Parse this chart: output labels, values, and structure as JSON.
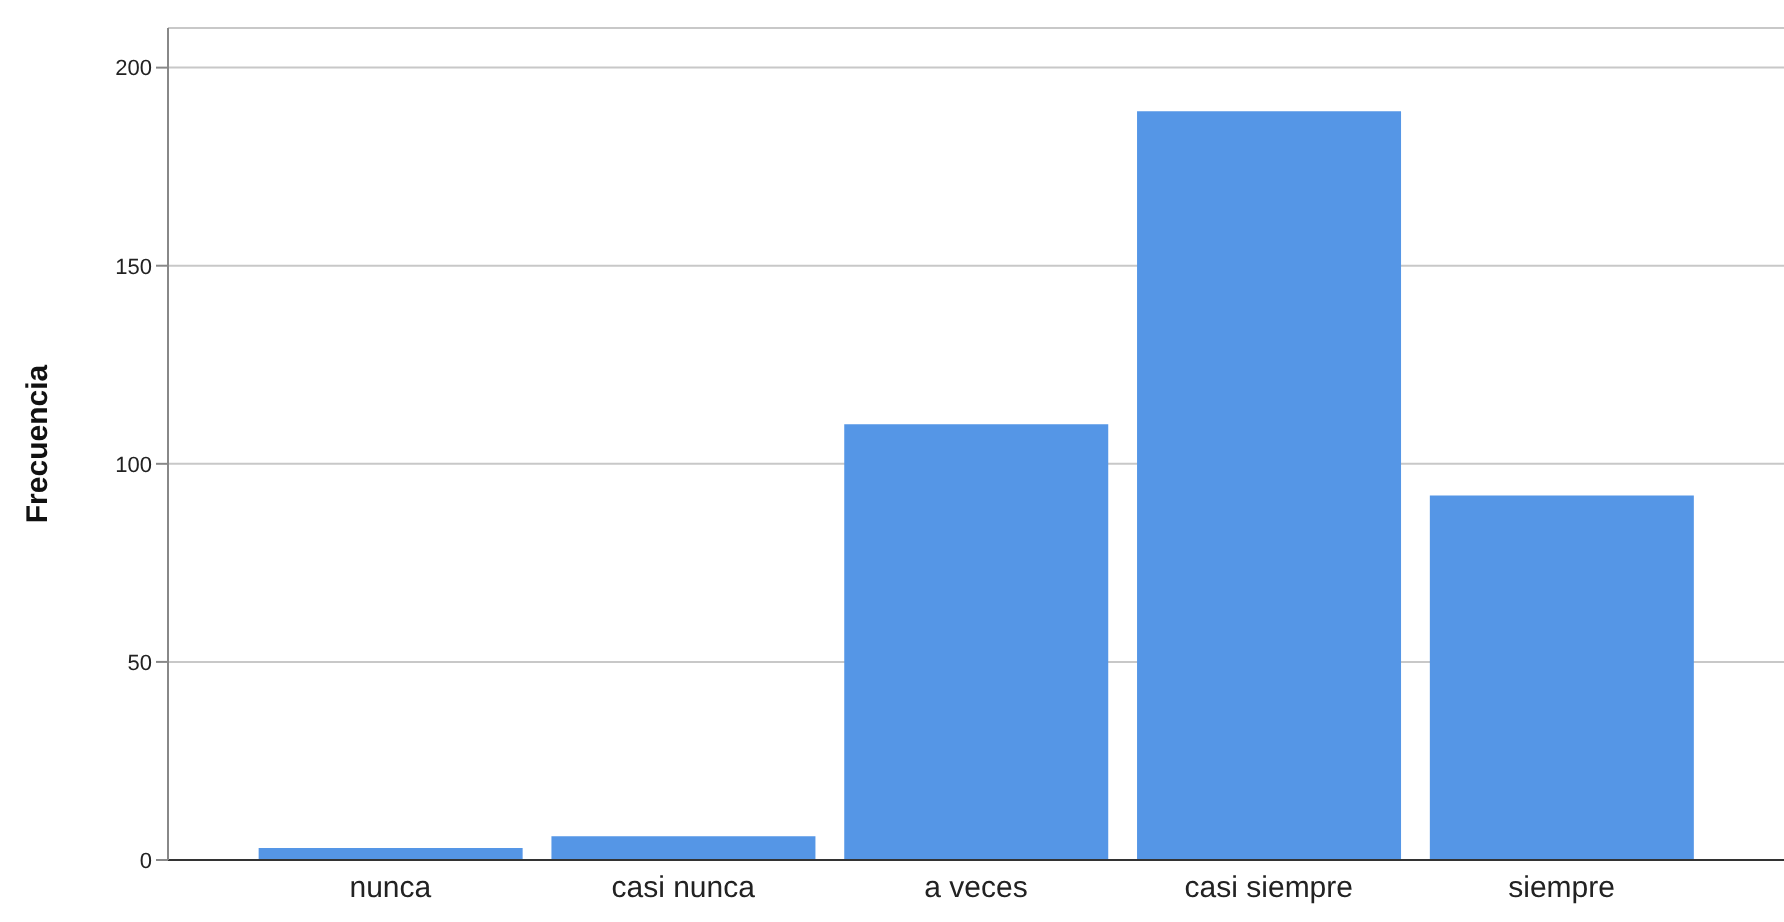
{
  "chart_data": {
    "type": "bar",
    "ylabel": "Frecuencia",
    "categories": [
      "nunca",
      "casi nunca",
      "a veces",
      "casi siempre",
      "siempre"
    ],
    "values": [
      3,
      6,
      110,
      189,
      92
    ],
    "color": "#5596e6",
    "ylim": [
      0,
      210
    ],
    "yticks": [
      0,
      50,
      100,
      150,
      200
    ],
    "grid": "y"
  }
}
